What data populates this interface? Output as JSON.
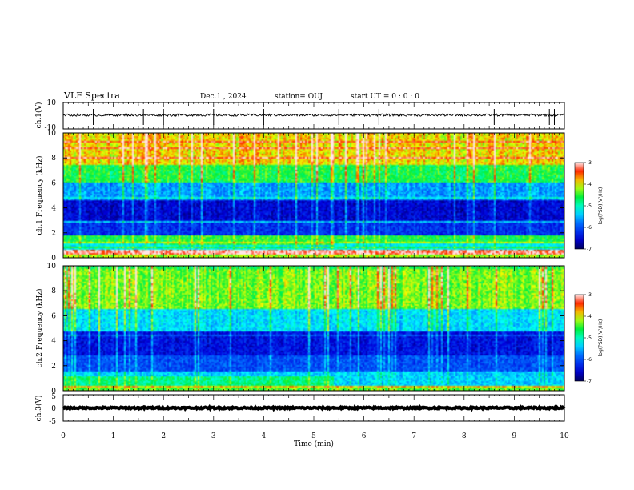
{
  "header": {
    "title": "VLF Spectra",
    "date": "Dec.1 , 2024",
    "station": "station= OUJ",
    "start": "start UT =  0 : 0 : 0"
  },
  "colors": {
    "frame": "#000000",
    "colormap": [
      "#000080",
      "#0000ff",
      "#00ffff",
      "#00ff00",
      "#ffff00",
      "#ff0000",
      "#ffffff"
    ]
  },
  "chart_data": [
    {
      "type": "line",
      "panel": "ch1-waveform",
      "ylabel": "ch.1(V)",
      "ylim": [
        -10,
        10
      ],
      "yticks": [
        "10",
        "-10"
      ],
      "xlim": [
        0,
        10
      ],
      "series": [
        {
          "name": "ch.1",
          "mean": 0.5,
          "noise": 0.9,
          "spikes_min": [
            0.6,
            1.6,
            2.0,
            3.0,
            4.0,
            5.5,
            6.3,
            8.6,
            9.7,
            9.8
          ]
        }
      ]
    },
    {
      "type": "heatmap",
      "panel": "ch1-spectrogram",
      "ylabel": "ch.1 Frequency (kHz)",
      "ylim": [
        0,
        10
      ],
      "yticks": [
        "0",
        "2",
        "4",
        "6",
        "8",
        "10"
      ],
      "xlim": [
        0,
        10
      ],
      "colorbar": {
        "label": "log(PSD)(V²/Hz)",
        "range": [
          -7,
          -3
        ],
        "ticks": [
          "-3",
          "-4",
          "-5",
          "-6",
          "-7"
        ]
      },
      "bands": [
        {
          "f": [
            0.0,
            0.3
          ],
          "level": -4.2
        },
        {
          "f": [
            0.3,
            0.6
          ],
          "level": -3.2
        },
        {
          "f": [
            0.6,
            1.2
          ],
          "level": -5.2
        },
        {
          "f": [
            1.2,
            1.8
          ],
          "level": -4.6
        },
        {
          "f": [
            1.8,
            3.0
          ],
          "level": -6.2
        },
        {
          "f": [
            3.0,
            4.6
          ],
          "level": -6.5
        },
        {
          "f": [
            4.6,
            6.0
          ],
          "level": -5.6
        },
        {
          "f": [
            6.0,
            7.5
          ],
          "level": -4.6
        },
        {
          "f": [
            7.5,
            10.0
          ],
          "level": -3.9
        }
      ],
      "events": [
        {
          "t": [
            1.5,
            5.4
          ],
          "f": [
            0.2,
            0.6
          ],
          "level": -3.1
        },
        {
          "t": [
            2.0,
            5.4
          ],
          "f": [
            1.0,
            1.8
          ],
          "level": -4.5
        },
        {
          "t": [
            6.2,
            6.7
          ],
          "f": [
            0.2,
            0.5
          ],
          "level": -3.2
        }
      ]
    },
    {
      "type": "heatmap",
      "panel": "ch2-spectrogram",
      "ylabel": "ch.2 Frequency (kHz)",
      "ylim": [
        0,
        10
      ],
      "yticks": [
        "0",
        "2",
        "4",
        "6",
        "8",
        "10"
      ],
      "xlim": [
        0,
        10
      ],
      "colorbar": {
        "label": "log(PSD)(V²/Hz)",
        "range": [
          -7,
          -3
        ],
        "ticks": [
          "-3",
          "-4",
          "-5",
          "-6",
          "-7"
        ]
      },
      "bands": [
        {
          "f": [
            0.0,
            0.4
          ],
          "level": -4.4
        },
        {
          "f": [
            0.4,
            1.5
          ],
          "level": -5.4
        },
        {
          "f": [
            1.5,
            2.8
          ],
          "level": -6.0
        },
        {
          "f": [
            2.8,
            4.8
          ],
          "level": -6.4
        },
        {
          "f": [
            4.8,
            6.5
          ],
          "level": -5.3
        },
        {
          "f": [
            6.5,
            10.0
          ],
          "level": -4.3
        }
      ],
      "events": [
        {
          "t": [
            0.0,
            5.4
          ],
          "f": [
            0.4,
            1.2
          ],
          "level": -4.8
        },
        {
          "t": [
            0.0,
            10.0
          ],
          "f": [
            9.7,
            10.0
          ],
          "level": -4.6
        }
      ]
    },
    {
      "type": "line",
      "panel": "ch3-waveform",
      "ylabel": "ch.3(V)",
      "ylim": [
        -5,
        5
      ],
      "yticks": [
        "5",
        "0",
        "-5"
      ],
      "xlim": [
        0,
        10
      ],
      "series": [
        {
          "name": "ch.3",
          "mean": 0.0,
          "noise": 0.3
        }
      ]
    }
  ],
  "xaxis": {
    "label": "Time (min)",
    "ticks": [
      "0",
      "1",
      "2",
      "3",
      "4",
      "5",
      "6",
      "7",
      "8",
      "9",
      "10"
    ]
  }
}
